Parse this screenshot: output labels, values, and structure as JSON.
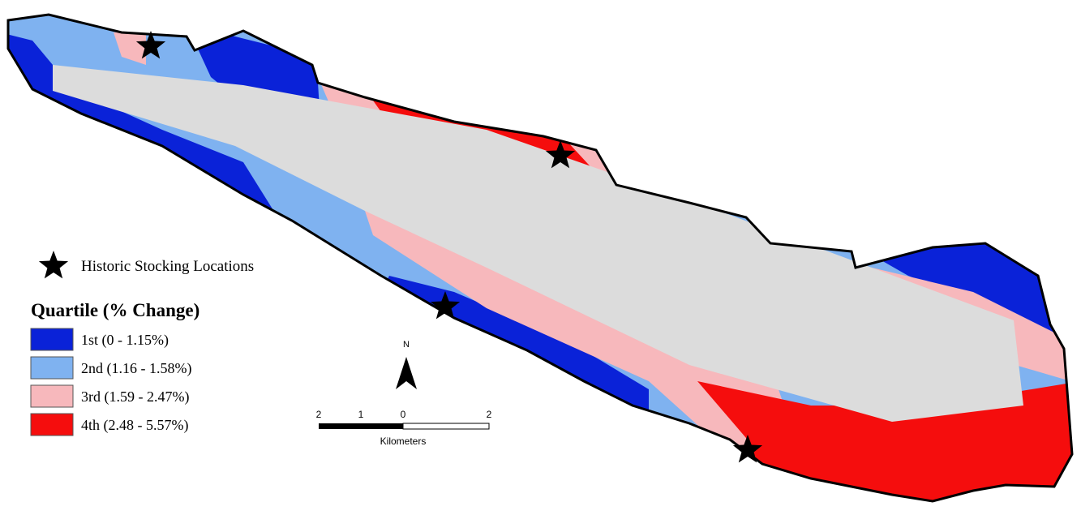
{
  "legend": {
    "stocking_label": "Historic Stocking Locations",
    "title": "Quartile (% Change)",
    "items": [
      {
        "label": "1st (0 - 1.15%)",
        "color": "#0a22d8"
      },
      {
        "label": "2nd (1.16 - 1.58%)",
        "color": "#7fb2f0"
      },
      {
        "label": "3rd (1.59 - 2.47%)",
        "color": "#f7b8bc"
      },
      {
        "label": "4th (2.48 - 5.57%)",
        "color": "#f50d0d"
      }
    ]
  },
  "scale_bar": {
    "labels": [
      "2",
      "1",
      "0",
      "2"
    ],
    "unit": "Kilometers"
  },
  "north_arrow": "N"
}
